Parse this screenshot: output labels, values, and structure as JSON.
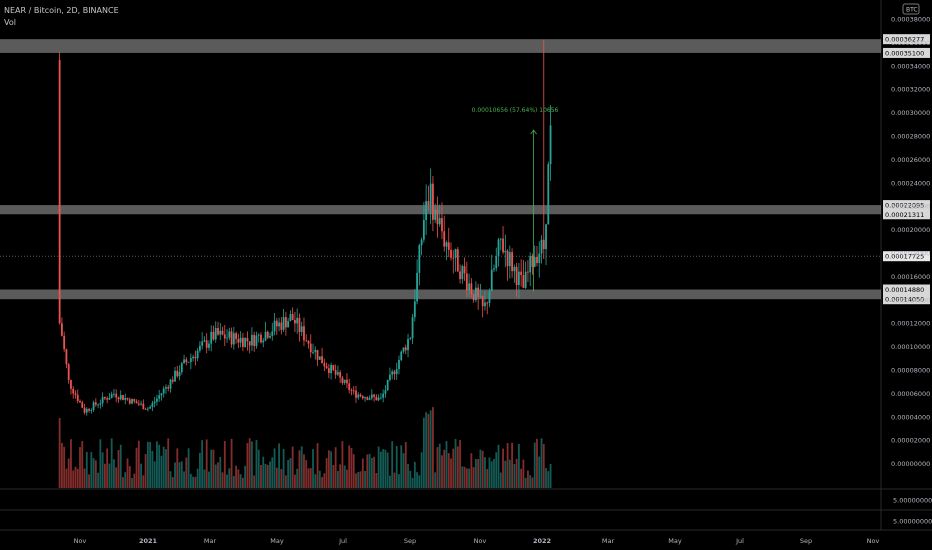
{
  "header": {
    "symbol_line": "NEAR / Bitcoin, 2D, BINANCE",
    "vol_label": "Vol"
  },
  "price_axis": {
    "currency_button": "BTC",
    "ticks": [
      "0.00038000",
      "0.00036000",
      "0.00034000",
      "0.00032000",
      "0.00030000",
      "0.00028000",
      "0.00026000",
      "0.00024000",
      "0.00022000",
      "0.00020000",
      "0.00018000",
      "0.00016000",
      "0.00014000",
      "0.00012000",
      "0.00010000",
      "0.00008000",
      "0.00006000",
      "0.00004000",
      "0.00002000",
      "0.00000000"
    ]
  },
  "volume_axis": {
    "ticks": [
      "5.00000000",
      "5.00000000"
    ]
  },
  "time_axis": {
    "labels": [
      "Nov",
      "2021",
      "Mar",
      "May",
      "Jul",
      "Sep",
      "Nov",
      "2022",
      "Mar",
      "May",
      "Jul",
      "Sep",
      "Nov"
    ]
  },
  "zones": [
    {
      "name": "zone-top",
      "label_upper": "0.00036277",
      "label_lower": "0.00035100",
      "upper": 0.00036277,
      "lower": 0.000351
    },
    {
      "name": "zone-mid",
      "label_upper": "0.00022095",
      "label_lower": "0.00021311",
      "upper": 0.00022095,
      "lower": 0.00021311
    },
    {
      "name": "zone-low",
      "label_upper": "0.00014880",
      "label_lower": "0.00014050",
      "upper": 0.0001488,
      "lower": 0.0001405
    }
  ],
  "last_price": {
    "label": "0.00017725",
    "value": 0.00017725
  },
  "measure": {
    "label": "0.00010656 (57.64%) 10656"
  },
  "colors": {
    "up": "#26a69a",
    "down": "#ef5350",
    "measure": "#4caf50",
    "zone": "#7a7a7a",
    "badge_bg": "#d8d8d8"
  },
  "chart_data": {
    "type": "candlestick",
    "x_axis": {
      "labels": [
        "Nov",
        "2021",
        "Mar",
        "May",
        "Jul",
        "Sep",
        "Nov",
        "2022",
        "Mar",
        "May",
        "Jul",
        "Sep",
        "Nov"
      ]
    },
    "y_axis": {
      "min": 0,
      "max": 0.00038,
      "scale": "linear"
    },
    "series": [
      {
        "name": "NEAR / Bitcoin, 2D, BINANCE",
        "candles": []
      },
      {
        "name": "Vol",
        "values": []
      }
    ],
    "shape_points_btc": [
      [
        "2020-10-14",
        0.00035
      ],
      [
        "2020-10-16",
        0.00011
      ],
      [
        "2020-10-22",
        7e-05
      ],
      [
        "2020-11-05",
        4.5e-05
      ],
      [
        "2020-12-01",
        6e-05
      ],
      [
        "2021-01-01",
        4.7e-05
      ],
      [
        "2021-02-01",
        8.5e-05
      ],
      [
        "2021-02-28",
        0.00011
      ],
      [
        "2021-04-01",
        0.000105
      ],
      [
        "2021-05-07",
        0.000125
      ],
      [
        "2021-06-01",
        9e-05
      ],
      [
        "2021-07-01",
        6e-05
      ],
      [
        "2021-07-25",
        5.5e-05
      ],
      [
        "2021-08-20",
        0.00011
      ],
      [
        "2021-09-04",
        0.000235
      ],
      [
        "2021-09-20",
        0.00019
      ],
      [
        "2021-10-10",
        0.000155
      ],
      [
        "2021-10-24",
        0.00013
      ],
      [
        "2021-11-08",
        0.00019
      ],
      [
        "2021-11-28",
        0.00015
      ],
      [
        "2021-12-08",
        0.00018
      ],
      [
        "2021-12-16",
        0.000185
      ],
      [
        "2021-12-22",
        0.00028
      ]
    ]
  }
}
